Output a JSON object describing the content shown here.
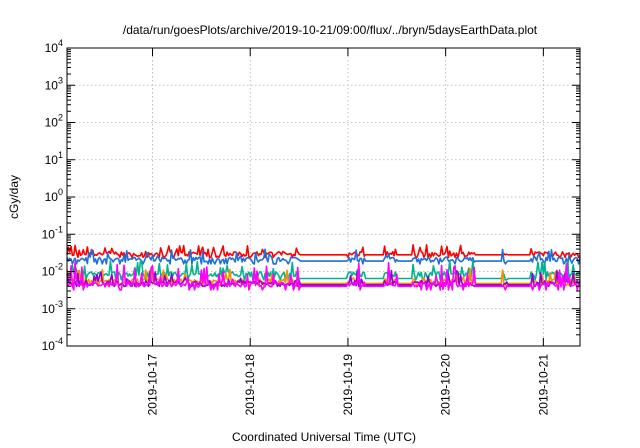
{
  "chart_data": {
    "type": "line",
    "title": "/data/run/goesPlots/archive/2019-10-21/09:00/flux/../bryn/5daysEarthData.plot",
    "xlabel": "Coordinated Universal Time (UTC)",
    "ylabel": "cGy/day",
    "yscale": "log",
    "ylim": [
      0.0001,
      10000
    ],
    "xlim": [
      "2019-10-16 03:00",
      "2019-10-21 09:00"
    ],
    "grid": true,
    "legend": "none",
    "y_ticks": [
      {
        "base": "10",
        "exp": "-4",
        "value": 0.0001
      },
      {
        "base": "10",
        "exp": "-3",
        "value": 0.001
      },
      {
        "base": "10",
        "exp": "-2",
        "value": 0.01
      },
      {
        "base": "10",
        "exp": "-1",
        "value": 0.1
      },
      {
        "base": "10",
        "exp": "0",
        "value": 1
      },
      {
        "base": "10",
        "exp": "1",
        "value": 10
      },
      {
        "base": "10",
        "exp": "2",
        "value": 100
      },
      {
        "base": "10",
        "exp": "3",
        "value": 1000
      },
      {
        "base": "10",
        "exp": "4",
        "value": 10000
      }
    ],
    "x_ticks": [
      "2019-10-17",
      "2019-10-18",
      "2019-10-19",
      "2019-10-20",
      "2019-10-21"
    ],
    "series": [
      {
        "color": "#ff0000",
        "base": 0.03,
        "high": 0.055,
        "low": 0.024,
        "gap_value": 0.028
      },
      {
        "color": "#1f6fd9",
        "base": 0.021,
        "high": 0.04,
        "low": 0.016,
        "gap_value": 0.019
      },
      {
        "color": "#00b38f",
        "base": 0.0085,
        "high": 0.02,
        "low": 0.006,
        "gap_value": 0.0065
      },
      {
        "color": "#ff8c00",
        "base": 0.0055,
        "high": 0.012,
        "low": 0.0042,
        "gap_value": 0.0048
      },
      {
        "color": "#9400d3",
        "base": 0.005,
        "high": 0.011,
        "low": 0.004,
        "gap_value": 0.0044
      },
      {
        "color": "#ff00ff",
        "base": 0.0045,
        "high": 0.018,
        "low": 0.0032,
        "gap_value": 0.004
      }
    ],
    "data_gaps": [
      [
        "2019-10-18 12:00",
        "2019-10-19 00:00"
      ],
      [
        "2019-10-19 04:00",
        "2019-10-19 09:00"
      ],
      [
        "2019-10-19 12:00",
        "2019-10-19 16:00"
      ],
      [
        "2019-10-20 07:00",
        "2019-10-20 14:00"
      ],
      [
        "2019-10-20 15:00",
        "2019-10-20 21:00"
      ]
    ]
  }
}
